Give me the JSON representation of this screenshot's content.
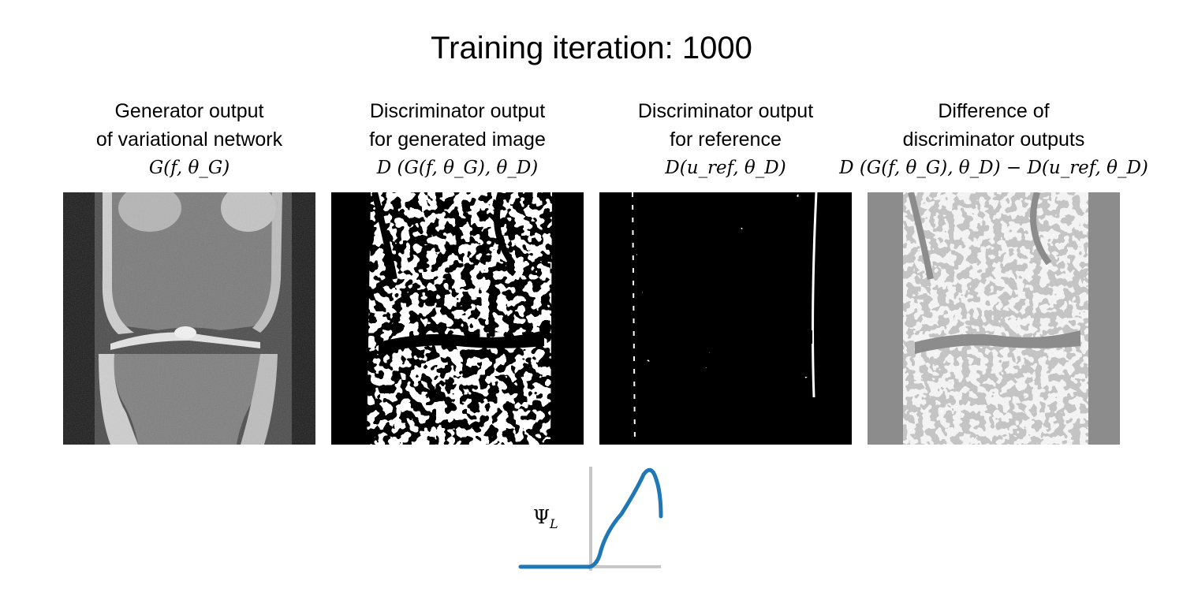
{
  "figure": {
    "title": "Training iteration: 1000"
  },
  "columns": [
    {
      "line1": "Generator output",
      "line2": "of variational network",
      "formula": "G(f, θ_G)"
    },
    {
      "line1": "Discriminator output",
      "line2": "for generated image",
      "formula": "D (G(f, θ_G), θ_D)"
    },
    {
      "line1": "Discriminator output",
      "line2": "for reference",
      "formula": "D(u_ref, θ_D)"
    },
    {
      "line1": "Difference of",
      "line2": "discriminator outputs",
      "formula": "D (G(f, θ_G), θ_D) − D(u_ref, θ_D)"
    }
  ],
  "activation": {
    "label": "Ψ",
    "label_sub": "L",
    "curve_color": "#1f77b4",
    "axis_color": "#c8c8c8"
  },
  "colors": {
    "difference_background": "#8c8c8c"
  }
}
